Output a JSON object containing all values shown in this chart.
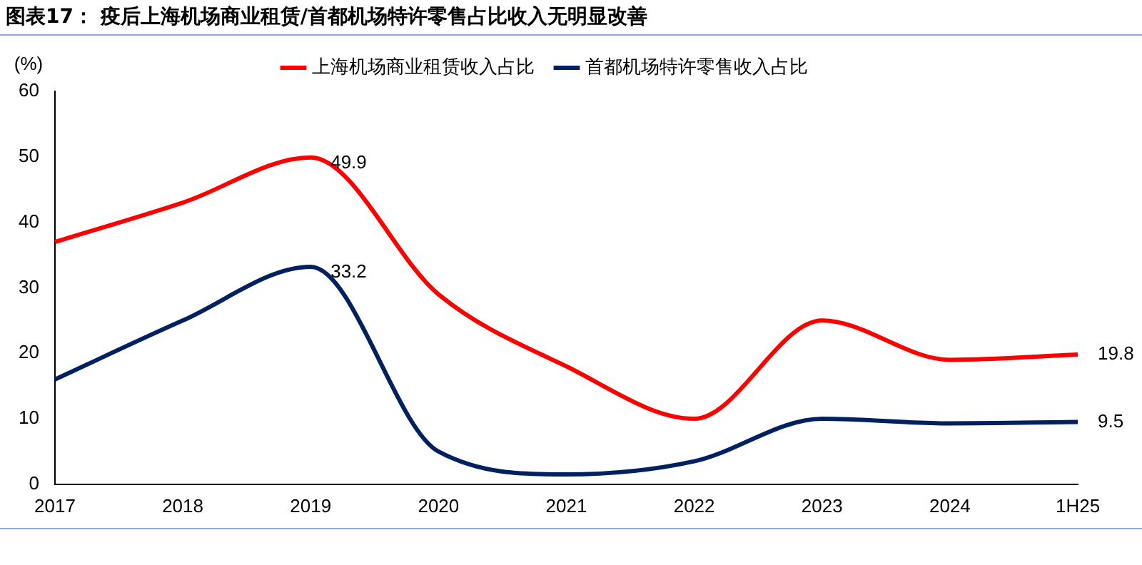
{
  "chart_data": {
    "type": "line",
    "title": "图表17： 疫后上海机场商业租赁/首都机场特许零售占比收入无明显改善",
    "ylabel": "(%)",
    "categories": [
      "2017",
      "2018",
      "2019",
      "2020",
      "2021",
      "2022",
      "2023",
      "2024",
      "1H25"
    ],
    "series": [
      {
        "name": "上海机场商业租赁收入占比",
        "color": "#ff0000",
        "values": [
          37,
          43,
          49.9,
          29,
          18,
          10,
          25,
          19,
          19.8
        ],
        "value_labels": [
          null,
          null,
          "49.9",
          null,
          null,
          null,
          null,
          null,
          "19.8"
        ]
      },
      {
        "name": "首都机场特许零售收入占比",
        "color": "#002060",
        "values": [
          16,
          25,
          33.2,
          5,
          1.5,
          3.5,
          10,
          9.3,
          9.5
        ],
        "value_labels": [
          null,
          null,
          "33.2",
          null,
          null,
          null,
          null,
          null,
          "9.5"
        ]
      }
    ],
    "ylim": [
      0,
      60
    ],
    "yticks": [
      0,
      10,
      20,
      30,
      40,
      50,
      60
    ],
    "grid": false,
    "legend": "top",
    "marker": "none",
    "line_style": "solid"
  }
}
